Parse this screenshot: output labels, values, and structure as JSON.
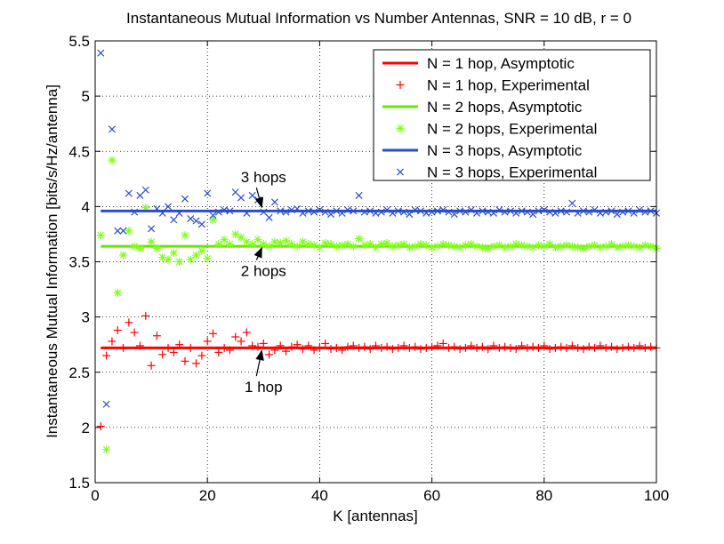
{
  "chart_data": {
    "type": "scatter",
    "title": "Instantaneous Mutual Information vs Number Antennas, SNR = 10 dB, r = 0",
    "xlabel": "K [antennas]",
    "ylabel": "Instantaneous Mutual Information [bits/s/Hz/antenna]",
    "xlim": [
      0,
      100
    ],
    "ylim": [
      1.5,
      5.5
    ],
    "xticks": [
      0,
      20,
      40,
      60,
      80,
      100
    ],
    "yticks": [
      1.5,
      2,
      2.5,
      3,
      3.5,
      4,
      4.5,
      5,
      5.5
    ],
    "grid": true,
    "legend_position": "top-right",
    "series": [
      {
        "name": "N = 1 hop, Asymptotic",
        "kind": "line",
        "color": "#ff0000",
        "value": 2.72
      },
      {
        "name": "N = 1 hop, Experimental",
        "kind": "points",
        "marker": "plus",
        "color": "#ff0000",
        "x": [
          1,
          2,
          3,
          4,
          5,
          6,
          7,
          8,
          9,
          10,
          11,
          12,
          13,
          14,
          15,
          16,
          17,
          18,
          19,
          20,
          21,
          22,
          23,
          24,
          25,
          26,
          27,
          28,
          29,
          30,
          31,
          32,
          33,
          34,
          35,
          36,
          37,
          38,
          39,
          40,
          41,
          42,
          43,
          44,
          45,
          46,
          47,
          48,
          49,
          50,
          51,
          52,
          53,
          54,
          55,
          56,
          57,
          58,
          59,
          60,
          61,
          62,
          63,
          64,
          65,
          66,
          67,
          68,
          69,
          70,
          71,
          72,
          73,
          74,
          75,
          76,
          77,
          78,
          79,
          80,
          81,
          82,
          83,
          84,
          85,
          86,
          87,
          88,
          89,
          90,
          91,
          92,
          93,
          94,
          95,
          96,
          97,
          98,
          99,
          100
        ],
        "y": [
          2.01,
          2.65,
          2.78,
          2.88,
          2.72,
          2.95,
          2.86,
          2.74,
          3.01,
          2.56,
          2.83,
          2.66,
          2.72,
          2.68,
          2.75,
          2.6,
          2.72,
          2.58,
          2.65,
          2.78,
          2.85,
          2.68,
          2.72,
          2.7,
          2.82,
          2.78,
          2.86,
          2.74,
          2.73,
          2.76,
          2.66,
          2.7,
          2.74,
          2.69,
          2.73,
          2.75,
          2.71,
          2.74,
          2.7,
          2.72,
          2.76,
          2.71,
          2.72,
          2.7,
          2.73,
          2.74,
          2.72,
          2.73,
          2.71,
          2.74,
          2.72,
          2.73,
          2.71,
          2.72,
          2.74,
          2.72,
          2.73,
          2.71,
          2.72,
          2.73,
          2.74,
          2.76,
          2.72,
          2.73,
          2.71,
          2.72,
          2.74,
          2.72,
          2.73,
          2.71,
          2.74,
          2.72,
          2.73,
          2.72,
          2.71,
          2.74,
          2.72,
          2.73,
          2.72,
          2.74,
          2.71,
          2.72,
          2.73,
          2.72,
          2.74,
          2.72,
          2.71,
          2.73,
          2.72,
          2.74,
          2.72,
          2.73,
          2.71,
          2.72,
          2.73,
          2.72,
          2.74,
          2.72,
          2.73,
          2.72
        ]
      },
      {
        "name": "N = 2 hops, Asymptotic",
        "kind": "line",
        "color": "#66e600",
        "value": 3.64
      },
      {
        "name": "N = 2 hops, Experimental",
        "kind": "points",
        "marker": "star",
        "color": "#80ff1a",
        "x": [
          1,
          2,
          3,
          4,
          5,
          6,
          7,
          8,
          9,
          10,
          11,
          12,
          13,
          14,
          15,
          16,
          17,
          18,
          19,
          20,
          21,
          22,
          23,
          24,
          25,
          26,
          27,
          28,
          29,
          30,
          31,
          32,
          33,
          34,
          35,
          36,
          37,
          38,
          39,
          40,
          41,
          42,
          43,
          44,
          45,
          46,
          47,
          48,
          49,
          50,
          51,
          52,
          53,
          54,
          55,
          56,
          57,
          58,
          59,
          60,
          61,
          62,
          63,
          64,
          65,
          66,
          67,
          68,
          69,
          70,
          71,
          72,
          73,
          74,
          75,
          76,
          77,
          78,
          79,
          80,
          81,
          82,
          83,
          84,
          85,
          86,
          87,
          88,
          89,
          90,
          91,
          92,
          93,
          94,
          95,
          96,
          97,
          98,
          99,
          100
        ],
        "y": [
          3.74,
          1.8,
          4.42,
          3.22,
          3.56,
          3.78,
          3.64,
          3.62,
          3.99,
          3.68,
          3.62,
          3.54,
          3.52,
          3.58,
          3.5,
          3.74,
          3.52,
          3.56,
          3.6,
          3.53,
          3.88,
          3.66,
          3.7,
          3.66,
          3.75,
          3.72,
          3.68,
          3.66,
          3.7,
          3.66,
          3.64,
          3.68,
          3.67,
          3.69,
          3.66,
          3.64,
          3.68,
          3.66,
          3.65,
          3.63,
          3.67,
          3.66,
          3.64,
          3.65,
          3.66,
          3.64,
          3.71,
          3.65,
          3.66,
          3.63,
          3.66,
          3.67,
          3.64,
          3.65,
          3.66,
          3.63,
          3.64,
          3.66,
          3.65,
          3.63,
          3.64,
          3.66,
          3.65,
          3.64,
          3.63,
          3.65,
          3.66,
          3.64,
          3.63,
          3.62,
          3.64,
          3.65,
          3.63,
          3.64,
          3.66,
          3.65,
          3.64,
          3.63,
          3.65,
          3.64,
          3.66,
          3.63,
          3.64,
          3.65,
          3.64,
          3.63,
          3.62,
          3.64,
          3.65,
          3.63,
          3.64,
          3.66,
          3.63,
          3.64,
          3.65,
          3.64,
          3.63,
          3.65,
          3.64,
          3.62
        ]
      },
      {
        "name": "N = 3 hops, Asymptotic",
        "kind": "line",
        "color": "#2b4ccc",
        "value": 3.96
      },
      {
        "name": "N = 3 hops, Experimental",
        "kind": "points",
        "marker": "cross",
        "color": "#2b4ccc",
        "x": [
          1,
          2,
          3,
          4,
          5,
          6,
          7,
          8,
          9,
          10,
          11,
          12,
          13,
          14,
          15,
          16,
          17,
          18,
          19,
          20,
          21,
          22,
          23,
          24,
          25,
          26,
          27,
          28,
          29,
          30,
          31,
          32,
          33,
          34,
          35,
          36,
          37,
          38,
          39,
          40,
          41,
          42,
          43,
          44,
          45,
          46,
          47,
          48,
          49,
          50,
          51,
          52,
          53,
          54,
          55,
          56,
          57,
          58,
          59,
          60,
          61,
          62,
          63,
          64,
          65,
          66,
          67,
          68,
          69,
          70,
          71,
          72,
          73,
          74,
          75,
          76,
          77,
          78,
          79,
          80,
          81,
          82,
          83,
          84,
          85,
          86,
          87,
          88,
          89,
          90,
          91,
          92,
          93,
          94,
          95,
          96,
          97,
          98,
          99,
          100
        ],
        "y": [
          5.39,
          2.21,
          4.7,
          3.78,
          3.78,
          4.12,
          3.95,
          4.1,
          4.15,
          3.8,
          3.98,
          3.94,
          4.0,
          3.88,
          3.94,
          4.07,
          3.89,
          3.87,
          3.84,
          4.12,
          3.92,
          3.95,
          3.97,
          3.96,
          4.13,
          4.08,
          3.94,
          4.1,
          4.06,
          3.95,
          3.9,
          4.04,
          3.96,
          3.95,
          3.97,
          3.98,
          3.94,
          3.96,
          3.95,
          3.97,
          3.95,
          3.93,
          3.96,
          3.94,
          3.97,
          3.96,
          4.1,
          3.95,
          3.96,
          3.94,
          3.95,
          3.97,
          3.94,
          3.96,
          3.95,
          3.93,
          3.97,
          3.96,
          3.94,
          3.95,
          3.96,
          3.97,
          3.95,
          3.93,
          3.96,
          3.95,
          3.97,
          3.94,
          3.96,
          3.95,
          3.94,
          3.97,
          3.95,
          3.96,
          3.94,
          3.96,
          3.95,
          3.93,
          3.96,
          3.97,
          3.95,
          3.94,
          3.96,
          3.95,
          4.03,
          3.94,
          3.96,
          3.95,
          3.97,
          3.94,
          3.95,
          3.96,
          3.93,
          3.95,
          3.96,
          3.94,
          3.97,
          3.95,
          3.96,
          3.94
        ]
      }
    ],
    "annotations": [
      {
        "text": "3 hops",
        "text_x": 30,
        "text_y": 4.22,
        "arrow_to_x": 30,
        "arrow_to_y": 3.97
      },
      {
        "text": "2 hops",
        "text_x": 30,
        "text_y": 3.37,
        "arrow_to_x": 30,
        "arrow_to_y": 3.65
      },
      {
        "text": "1 hop",
        "text_x": 30,
        "text_y": 2.32,
        "arrow_to_x": 30,
        "arrow_to_y": 2.72
      }
    ]
  }
}
